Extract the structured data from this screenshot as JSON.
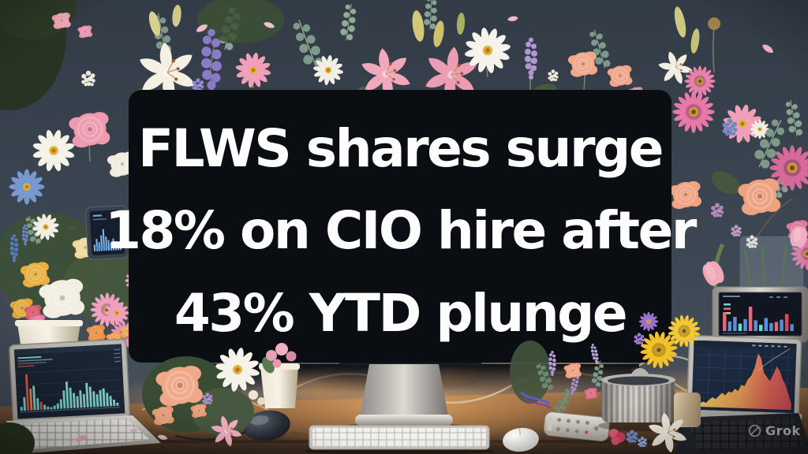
{
  "headline": {
    "lines": [
      "FLWS shares surge",
      "18% on CIO hire after",
      "43% YTD plunge"
    ],
    "text_color": "#fdfdfd",
    "panel_color": "#0a0d12"
  },
  "watermark": {
    "label": "Grok",
    "icon": "grok-logo-icon"
  },
  "palette": {
    "wall": "#3a4450",
    "desk": "#8a6244",
    "warm_glow": "#f0b070",
    "monitor_black": "#0a0d12",
    "aluminum": "#c6c3bd",
    "flower_pinks": [
      "#ee9ab0",
      "#f0a888",
      "#e878a8"
    ],
    "flower_yellows": [
      "#e8b040",
      "#f2c028"
    ],
    "greenery": "#5a7a50"
  },
  "screens": {
    "phone": {
      "type": "bar",
      "background": "#141e2c",
      "bar_color": "#7fb6e8",
      "bars": [
        28,
        52,
        38,
        66,
        92,
        60,
        44,
        32,
        50,
        38,
        26,
        36
      ]
    },
    "left_laptop": {
      "type": "bar",
      "background": "#1a2433",
      "colors": {
        "t": "#85d9d3",
        "r": "#e05a44",
        "o": "#e8895c"
      },
      "bars": [
        [
          "t",
          10
        ],
        [
          "t",
          34
        ],
        [
          "r",
          92
        ],
        [
          "o",
          55
        ],
        [
          "t",
          62
        ],
        [
          "t",
          30
        ],
        [
          "r",
          20
        ],
        [
          "t",
          12
        ],
        [
          "t",
          7
        ],
        [
          "t",
          5
        ],
        [
          "t",
          9
        ],
        [
          "t",
          14
        ],
        [
          "t",
          24
        ],
        [
          "t",
          46
        ],
        [
          "t",
          68
        ],
        [
          "t",
          52
        ],
        [
          "t",
          38
        ],
        [
          "t",
          30
        ],
        [
          "t",
          44
        ],
        [
          "t",
          34
        ],
        [
          "t",
          62
        ],
        [
          "t",
          52
        ],
        [
          "t",
          40
        ],
        [
          "t",
          32
        ],
        [
          "t",
          42
        ],
        [
          "t",
          46
        ],
        [
          "t",
          34
        ],
        [
          "t",
          26
        ],
        [
          "t",
          16
        ],
        [
          "t",
          8
        ]
      ]
    },
    "right_laptop": {
      "type": "area",
      "background": "#1d2a40",
      "grid_color": "#35507a",
      "gradient": [
        "#f0ca60",
        "#eda158",
        "#e4695a",
        "#d94f5e"
      ],
      "values": [
        3,
        6,
        9,
        7,
        13,
        17,
        14,
        20,
        25,
        21,
        28,
        26,
        33,
        29,
        40,
        38,
        50,
        56,
        70,
        95,
        86,
        62,
        55,
        48,
        60,
        74,
        66,
        52,
        42,
        26,
        10
      ]
    },
    "side_monitor": {
      "type": "bar",
      "background": "#10151f",
      "legend_colors": [
        "#6fd3d8",
        "#e06a84",
        "#e8c35c"
      ],
      "colors": {
        "p": "#e26a7e",
        "b": "#5b8fd6",
        "c": "#6fd3d8",
        "r": "#e0485e"
      },
      "bars": [
        [
          "p",
          66
        ],
        [
          "b",
          34
        ],
        [
          "b",
          50
        ],
        [
          "c",
          26
        ],
        [
          "b",
          42
        ],
        [
          "p",
          86
        ],
        [
          "b",
          38
        ],
        [
          "c",
          22
        ],
        [
          "b",
          46
        ],
        [
          "b",
          28
        ],
        [
          "p",
          32
        ],
        [
          "b",
          40
        ],
        [
          "r",
          60
        ],
        [
          "b",
          24
        ]
      ]
    }
  }
}
